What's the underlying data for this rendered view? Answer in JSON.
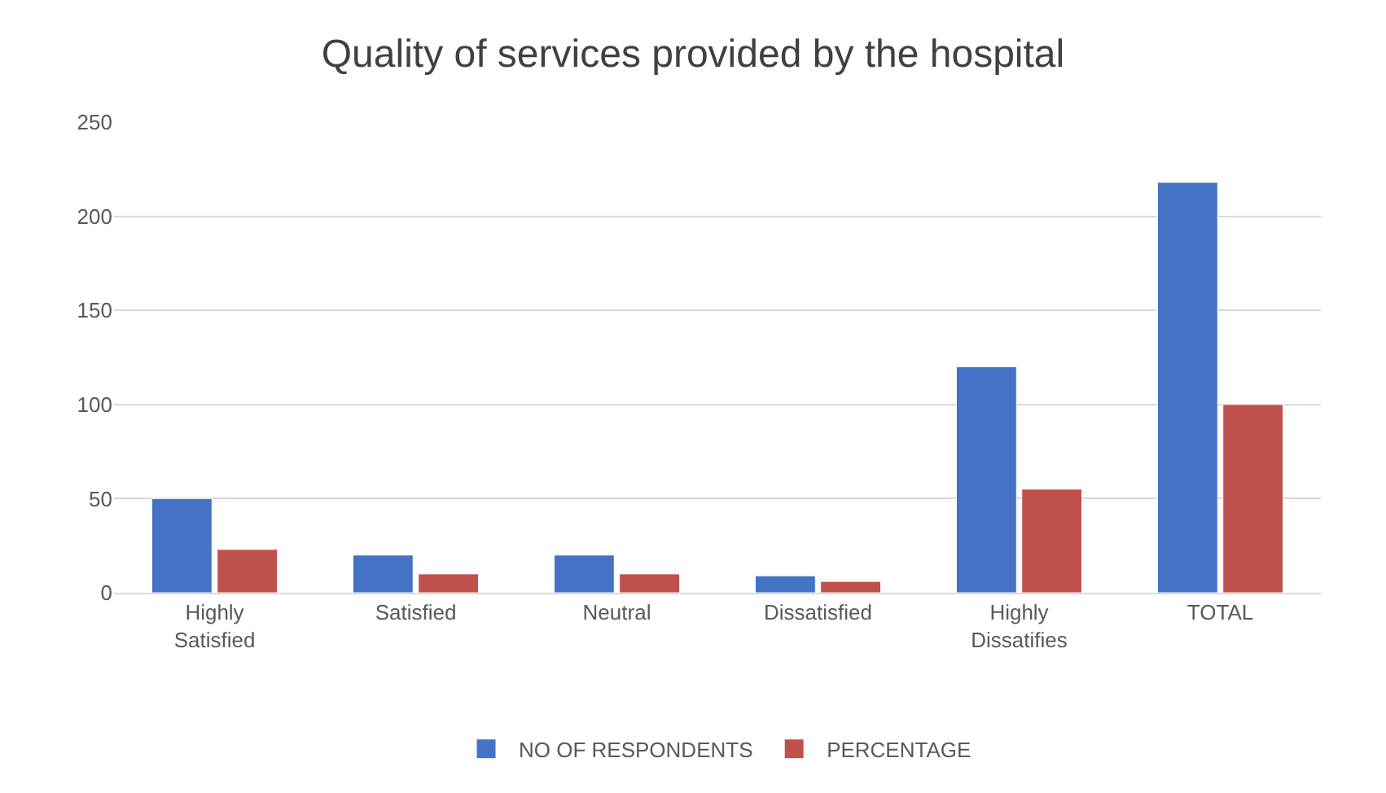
{
  "chart_data": {
    "type": "bar",
    "title": "Quality of services provided by the hospital",
    "categories": [
      "Highly Satisfied",
      "Satisfied",
      "Neutral",
      "Dissatisfied",
      "Highly Dissatifies",
      "TOTAL"
    ],
    "series": [
      {
        "name": "NO OF RESPONDENTS",
        "color": "#4472c4",
        "values": [
          50,
          20,
          20,
          9,
          120,
          218
        ]
      },
      {
        "name": "PERCENTAGE",
        "color": "#c0504d",
        "values": [
          23,
          10,
          10,
          6,
          55,
          100
        ]
      }
    ],
    "ylim": [
      0,
      250
    ],
    "yticks": [
      0,
      50,
      100,
      150,
      200,
      250
    ],
    "grid": "y",
    "legend": "bottom"
  }
}
